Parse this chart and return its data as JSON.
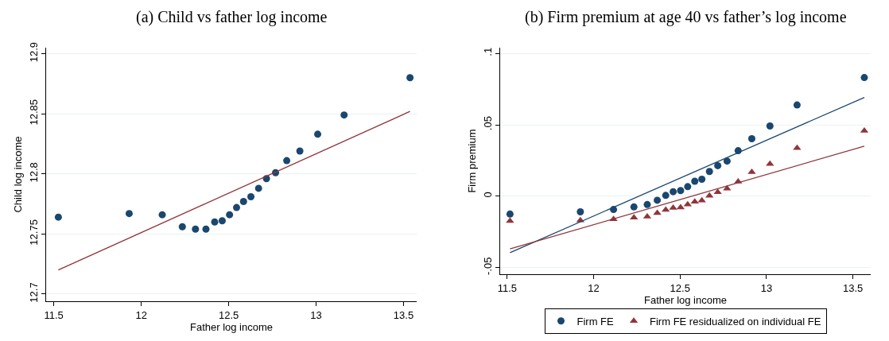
{
  "chart_data": [
    {
      "type": "scatter",
      "title": "(a) Child vs father log income",
      "xlabel": "Father log income",
      "ylabel": "Child log income",
      "xlim": [
        11.456,
        13.575
      ],
      "ylim": [
        12.694,
        12.905
      ],
      "xticks": [
        11.5,
        12,
        12.5,
        13,
        13.5
      ],
      "yticks": [
        12.7,
        12.75,
        12.8,
        12.85,
        12.9
      ],
      "grid": "y",
      "series": [
        {
          "color": "#1a476f",
          "marker": "circle",
          "x": [
            11.526,
            11.931,
            12.12,
            12.235,
            12.31,
            12.37,
            12.42,
            12.463,
            12.505,
            12.545,
            12.585,
            12.627,
            12.671,
            12.716,
            12.768,
            12.832,
            12.907,
            13.009,
            13.16,
            13.537
          ],
          "values": [
            12.764,
            12.767,
            12.766,
            12.756,
            12.754,
            12.754,
            12.76,
            12.761,
            12.766,
            12.772,
            12.777,
            12.781,
            12.788,
            12.796,
            12.801,
            12.811,
            12.819,
            12.833,
            12.849,
            12.88
          ]
        },
        {
          "type": "line",
          "color": "#90353b",
          "x": [
            11.526,
            13.537
          ],
          "values": [
            12.72,
            12.852
          ]
        }
      ]
    },
    {
      "type": "scatter",
      "title": "(b) Firm premium at age 40 vs father’s log income",
      "xlabel": "Father log income",
      "ylabel": "Firm premium",
      "xlim": [
        11.459,
        13.603
      ],
      "ylim": [
        -0.0546,
        0.104
      ],
      "xticks": [
        11.5,
        12,
        12.5,
        13,
        13.5
      ],
      "yticks": [
        {
          "value": -0.05,
          "label": "-.05"
        },
        0,
        {
          "value": 0.05,
          "label": ".05"
        },
        {
          "value": 0.1,
          "label": ".1"
        }
      ],
      "grid": "y",
      "legend": "bottom",
      "series": [
        {
          "name": "Firm FE",
          "color": "#1a476f",
          "marker": "circle",
          "x": [
            11.516,
            11.923,
            12.115,
            12.233,
            12.31,
            12.368,
            12.417,
            12.46,
            12.503,
            12.544,
            12.585,
            12.626,
            12.67,
            12.718,
            12.772,
            12.836,
            12.915,
            13.02,
            13.177,
            13.566
          ],
          "values": [
            -0.0125,
            -0.0109,
            -0.0093,
            -0.0075,
            -0.0058,
            -0.0028,
            0.0006,
            0.0032,
            0.004,
            0.0067,
            0.0105,
            0.0119,
            0.0173,
            0.0214,
            0.0246,
            0.0319,
            0.0403,
            0.0492,
            0.0639,
            0.0831
          ]
        },
        {
          "name": "Firm FE residualized on individual FE",
          "color": "#90353b",
          "marker": "triangle",
          "x": [
            11.516,
            11.923,
            12.115,
            12.233,
            12.31,
            12.368,
            12.417,
            12.46,
            12.503,
            12.544,
            12.585,
            12.626,
            12.67,
            12.718,
            12.772,
            12.836,
            12.915,
            13.02,
            13.177,
            13.566
          ],
          "values": [
            -0.0173,
            -0.0169,
            -0.0161,
            -0.0149,
            -0.0143,
            -0.0117,
            -0.0095,
            -0.0081,
            -0.0079,
            -0.0058,
            -0.0038,
            -0.003,
            0.0004,
            0.0028,
            0.0054,
            0.0103,
            0.0169,
            0.0226,
            0.0337,
            0.0458
          ]
        },
        {
          "type": "line",
          "color": "#1a476f",
          "x": [
            11.516,
            13.566
          ],
          "values": [
            -0.0395,
            0.0692
          ]
        },
        {
          "type": "line",
          "color": "#90353b",
          "x": [
            11.516,
            13.566
          ],
          "values": [
            -0.0369,
            0.0351
          ]
        }
      ]
    }
  ]
}
